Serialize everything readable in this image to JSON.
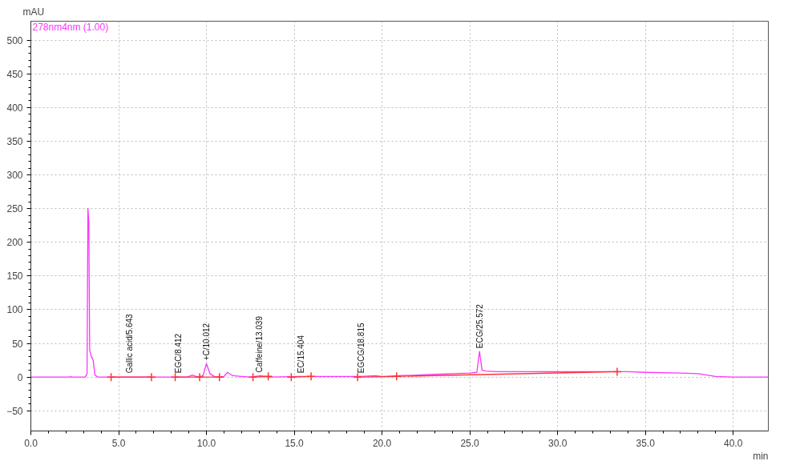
{
  "chart_data": {
    "type": "line",
    "xlabel": "min",
    "ylabel": "mAU",
    "xlim": [
      0,
      42
    ],
    "ylim": [
      -80,
      528
    ],
    "xticks": [
      {
        "value": 0,
        "label": "0.0"
      },
      {
        "value": 5,
        "label": "5.0"
      },
      {
        "value": 10,
        "label": "10.0"
      },
      {
        "value": 15,
        "label": "15.0"
      },
      {
        "value": 20,
        "label": "20.0"
      },
      {
        "value": 25,
        "label": "25.0"
      },
      {
        "value": 30,
        "label": "30.0"
      },
      {
        "value": 35,
        "label": "35.0"
      },
      {
        "value": 40,
        "label": "40.0"
      }
    ],
    "yticks": [
      -50,
      0,
      50,
      100,
      150,
      200,
      250,
      300,
      350,
      400,
      450,
      500
    ],
    "grid": true,
    "line_style": "solid",
    "marker": "none",
    "legend": "top left",
    "series": [
      {
        "name": "278nm4nm (1.00)",
        "color": "#ff33ff",
        "x": [
          0,
          2.2,
          2.25,
          2.3,
          3.1,
          3.2,
          3.25,
          3.3,
          3.35,
          3.45,
          3.55,
          3.65,
          3.8,
          5,
          7,
          8.9,
          9.2,
          9.5,
          9.8,
          10.0,
          10.2,
          10.5,
          11.0,
          11.2,
          11.5,
          12.0,
          12.5,
          13.1,
          13.5,
          15.4,
          16.0,
          18.8,
          19.6,
          20,
          21,
          22,
          23,
          24,
          25,
          25.4,
          25.55,
          25.7,
          25.9,
          26.5,
          28,
          30,
          32,
          33.4,
          34,
          35,
          37,
          38,
          39,
          40,
          42
        ],
        "values": [
          0,
          0,
          1,
          0,
          0,
          5,
          250,
          230,
          40,
          30,
          25,
          3,
          0,
          0,
          0,
          0,
          3,
          0,
          2,
          20,
          5,
          0,
          1,
          7,
          2,
          1,
          0,
          2,
          0,
          1,
          1,
          1,
          2,
          1,
          2,
          3,
          4,
          5,
          6,
          7,
          38,
          10,
          9,
          8,
          8,
          8,
          8,
          8,
          8,
          7,
          6,
          5,
          1,
          0,
          0
        ]
      },
      {
        "color": "#ff3333",
        "x": [
          4.57,
          6.87,
          7.5,
          8.22,
          9.61,
          10.74,
          12.0,
          12.65,
          13.52,
          14.0,
          14.83,
          15.96,
          17,
          18.61,
          20.83,
          33.39
        ],
        "values": [
          0,
          0,
          null,
          0,
          0,
          0,
          null,
          0,
          1,
          null,
          0,
          1,
          null,
          0,
          1,
          8
        ]
      },
      {
        "type": "scatter",
        "marker": "cross",
        "color": "#ff3333",
        "x": [
          4.57,
          6.87,
          8.22,
          9.61,
          10.74,
          12.65,
          13.52,
          14.83,
          15.96,
          18.61,
          20.83,
          33.39
        ],
        "values": [
          0,
          0,
          0,
          0,
          0,
          0,
          1,
          0,
          1,
          0,
          1,
          8
        ]
      }
    ],
    "annotations": [
      {
        "text": "Gallic acid/5.643",
        "x": 5.643,
        "y": 1
      },
      {
        "text": "EGC/8.412",
        "x": 8.412,
        "y": 1
      },
      {
        "text": "+C/10.012",
        "x": 10.012,
        "y": 20
      },
      {
        "text": "Caffeine/13.039",
        "x": 13.039,
        "y": 2
      },
      {
        "text": "EC/15.404",
        "x": 15.404,
        "y": 1
      },
      {
        "text": "EGCG/18.815",
        "x": 18.815,
        "y": 1
      },
      {
        "text": "ECG/25.572",
        "x": 25.572,
        "y": 38
      }
    ]
  }
}
